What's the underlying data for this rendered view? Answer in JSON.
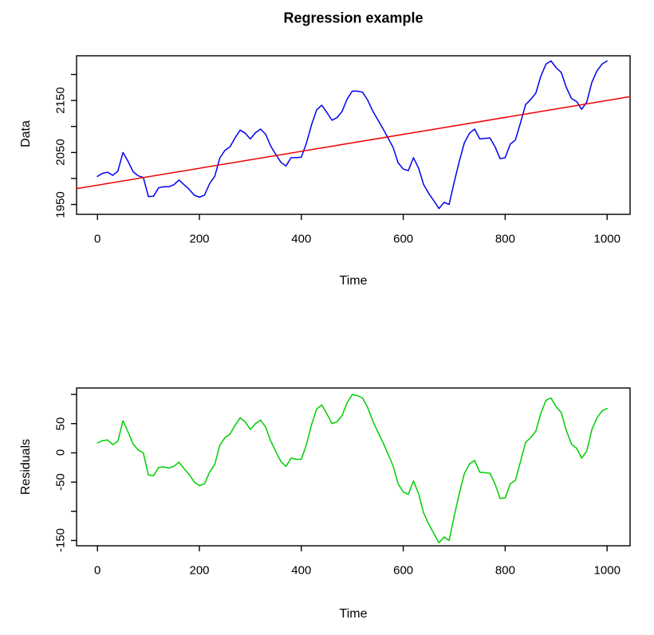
{
  "chart_data": [
    {
      "type": "line",
      "title": "Regression example",
      "xlabel": "Time",
      "ylabel": "Data",
      "xlim": [
        -41,
        1045
      ],
      "ylim": [
        1931,
        2236
      ],
      "x_ticks": [
        0,
        200,
        400,
        600,
        800,
        1000
      ],
      "x_tick_labels": [
        "0",
        "200",
        "400",
        "600",
        "800",
        "1000"
      ],
      "y_ticks": [
        1950,
        2000,
        2050,
        2100,
        2150,
        2200
      ],
      "y_tick_labels": [
        "1950",
        "",
        "2050",
        "",
        "2150",
        ""
      ],
      "grid": false,
      "legend": "none",
      "series": [
        {
          "name": "data-series",
          "color": "#0000EE",
          "x_start": 0,
          "x_step": 10,
          "values": [
            2004,
            2010,
            2012,
            2006,
            2014,
            2050,
            2033,
            2013,
            2005,
            2002,
            1965,
            1966,
            1982,
            1984,
            1984,
            1988,
            1997,
            1988,
            1979,
            1968,
            1964,
            1968,
            1990,
            2004,
            2039,
            2054,
            2061,
            2078,
            2093,
            2087,
            2076,
            2088,
            2095,
            2085,
            2062,
            2046,
            2031,
            2024,
            2040,
            2040,
            2041,
            2068,
            2103,
            2132,
            2141,
            2127,
            2112,
            2117,
            2129,
            2153,
            2168,
            2168,
            2166,
            2151,
            2130,
            2113,
            2096,
            2078,
            2060,
            2030,
            2018,
            2015,
            2040,
            2020,
            1988,
            1971,
            1957,
            1942,
            1954,
            1950,
            1993,
            2033,
            2069,
            2087,
            2095,
            2076,
            2077,
            2078,
            2061,
            2038,
            2040,
            2066,
            2074,
            2107,
            2142,
            2152,
            2164,
            2197,
            2220,
            2226,
            2213,
            2204,
            2175,
            2154,
            2148,
            2133,
            2147,
            2185,
            2207,
            2220,
            2226
          ]
        },
        {
          "name": "regression",
          "color": "#EE0000",
          "line": {
            "x": [
              -41,
              1045
            ],
            "y": [
              1980.3,
              2157.3
            ]
          }
        }
      ]
    },
    {
      "type": "line",
      "title": "",
      "xlabel": "Time",
      "ylabel": "Residuals",
      "xlim": [
        -41,
        1045
      ],
      "ylim": [
        -159,
        111
      ],
      "x_ticks": [
        0,
        200,
        400,
        600,
        800,
        1000
      ],
      "x_tick_labels": [
        "0",
        "200",
        "400",
        "600",
        "800",
        "1000"
      ],
      "y_ticks": [
        -150,
        -100,
        -50,
        0,
        50,
        100
      ],
      "y_tick_labels": [
        "-150",
        "",
        "-50",
        "0",
        "50",
        ""
      ],
      "grid": false,
      "legend": "none",
      "series": [
        {
          "name": "residuals",
          "color": "#00CD00",
          "x_start": 0,
          "x_step": 10,
          "values": [
            17,
            21,
            22,
            14,
            20,
            55,
            36,
            15,
            5,
            0,
            -38,
            -39,
            -25,
            -24,
            -26,
            -23,
            -16,
            -27,
            -37,
            -50,
            -56,
            -53,
            -33,
            -20,
            13,
            26,
            32,
            47,
            60,
            53,
            40,
            50,
            56,
            44,
            20,
            2,
            -15,
            -23,
            -9,
            -11,
            -11,
            14,
            48,
            75,
            82,
            67,
            50,
            53,
            64,
            86,
            100,
            98,
            94,
            78,
            55,
            36,
            18,
            -2,
            -22,
            -53,
            -67,
            -71,
            -48,
            -70,
            -103,
            -122,
            -138,
            -154,
            -144,
            -150,
            -108,
            -70,
            -35,
            -19,
            -13,
            -33,
            -34,
            -35,
            -53,
            -78,
            -77,
            -53,
            -47,
            -15,
            18,
            26,
            37,
            68,
            90,
            94,
            79,
            69,
            38,
            15,
            8,
            -9,
            3,
            40,
            60,
            72,
            76
          ]
        }
      ]
    }
  ]
}
